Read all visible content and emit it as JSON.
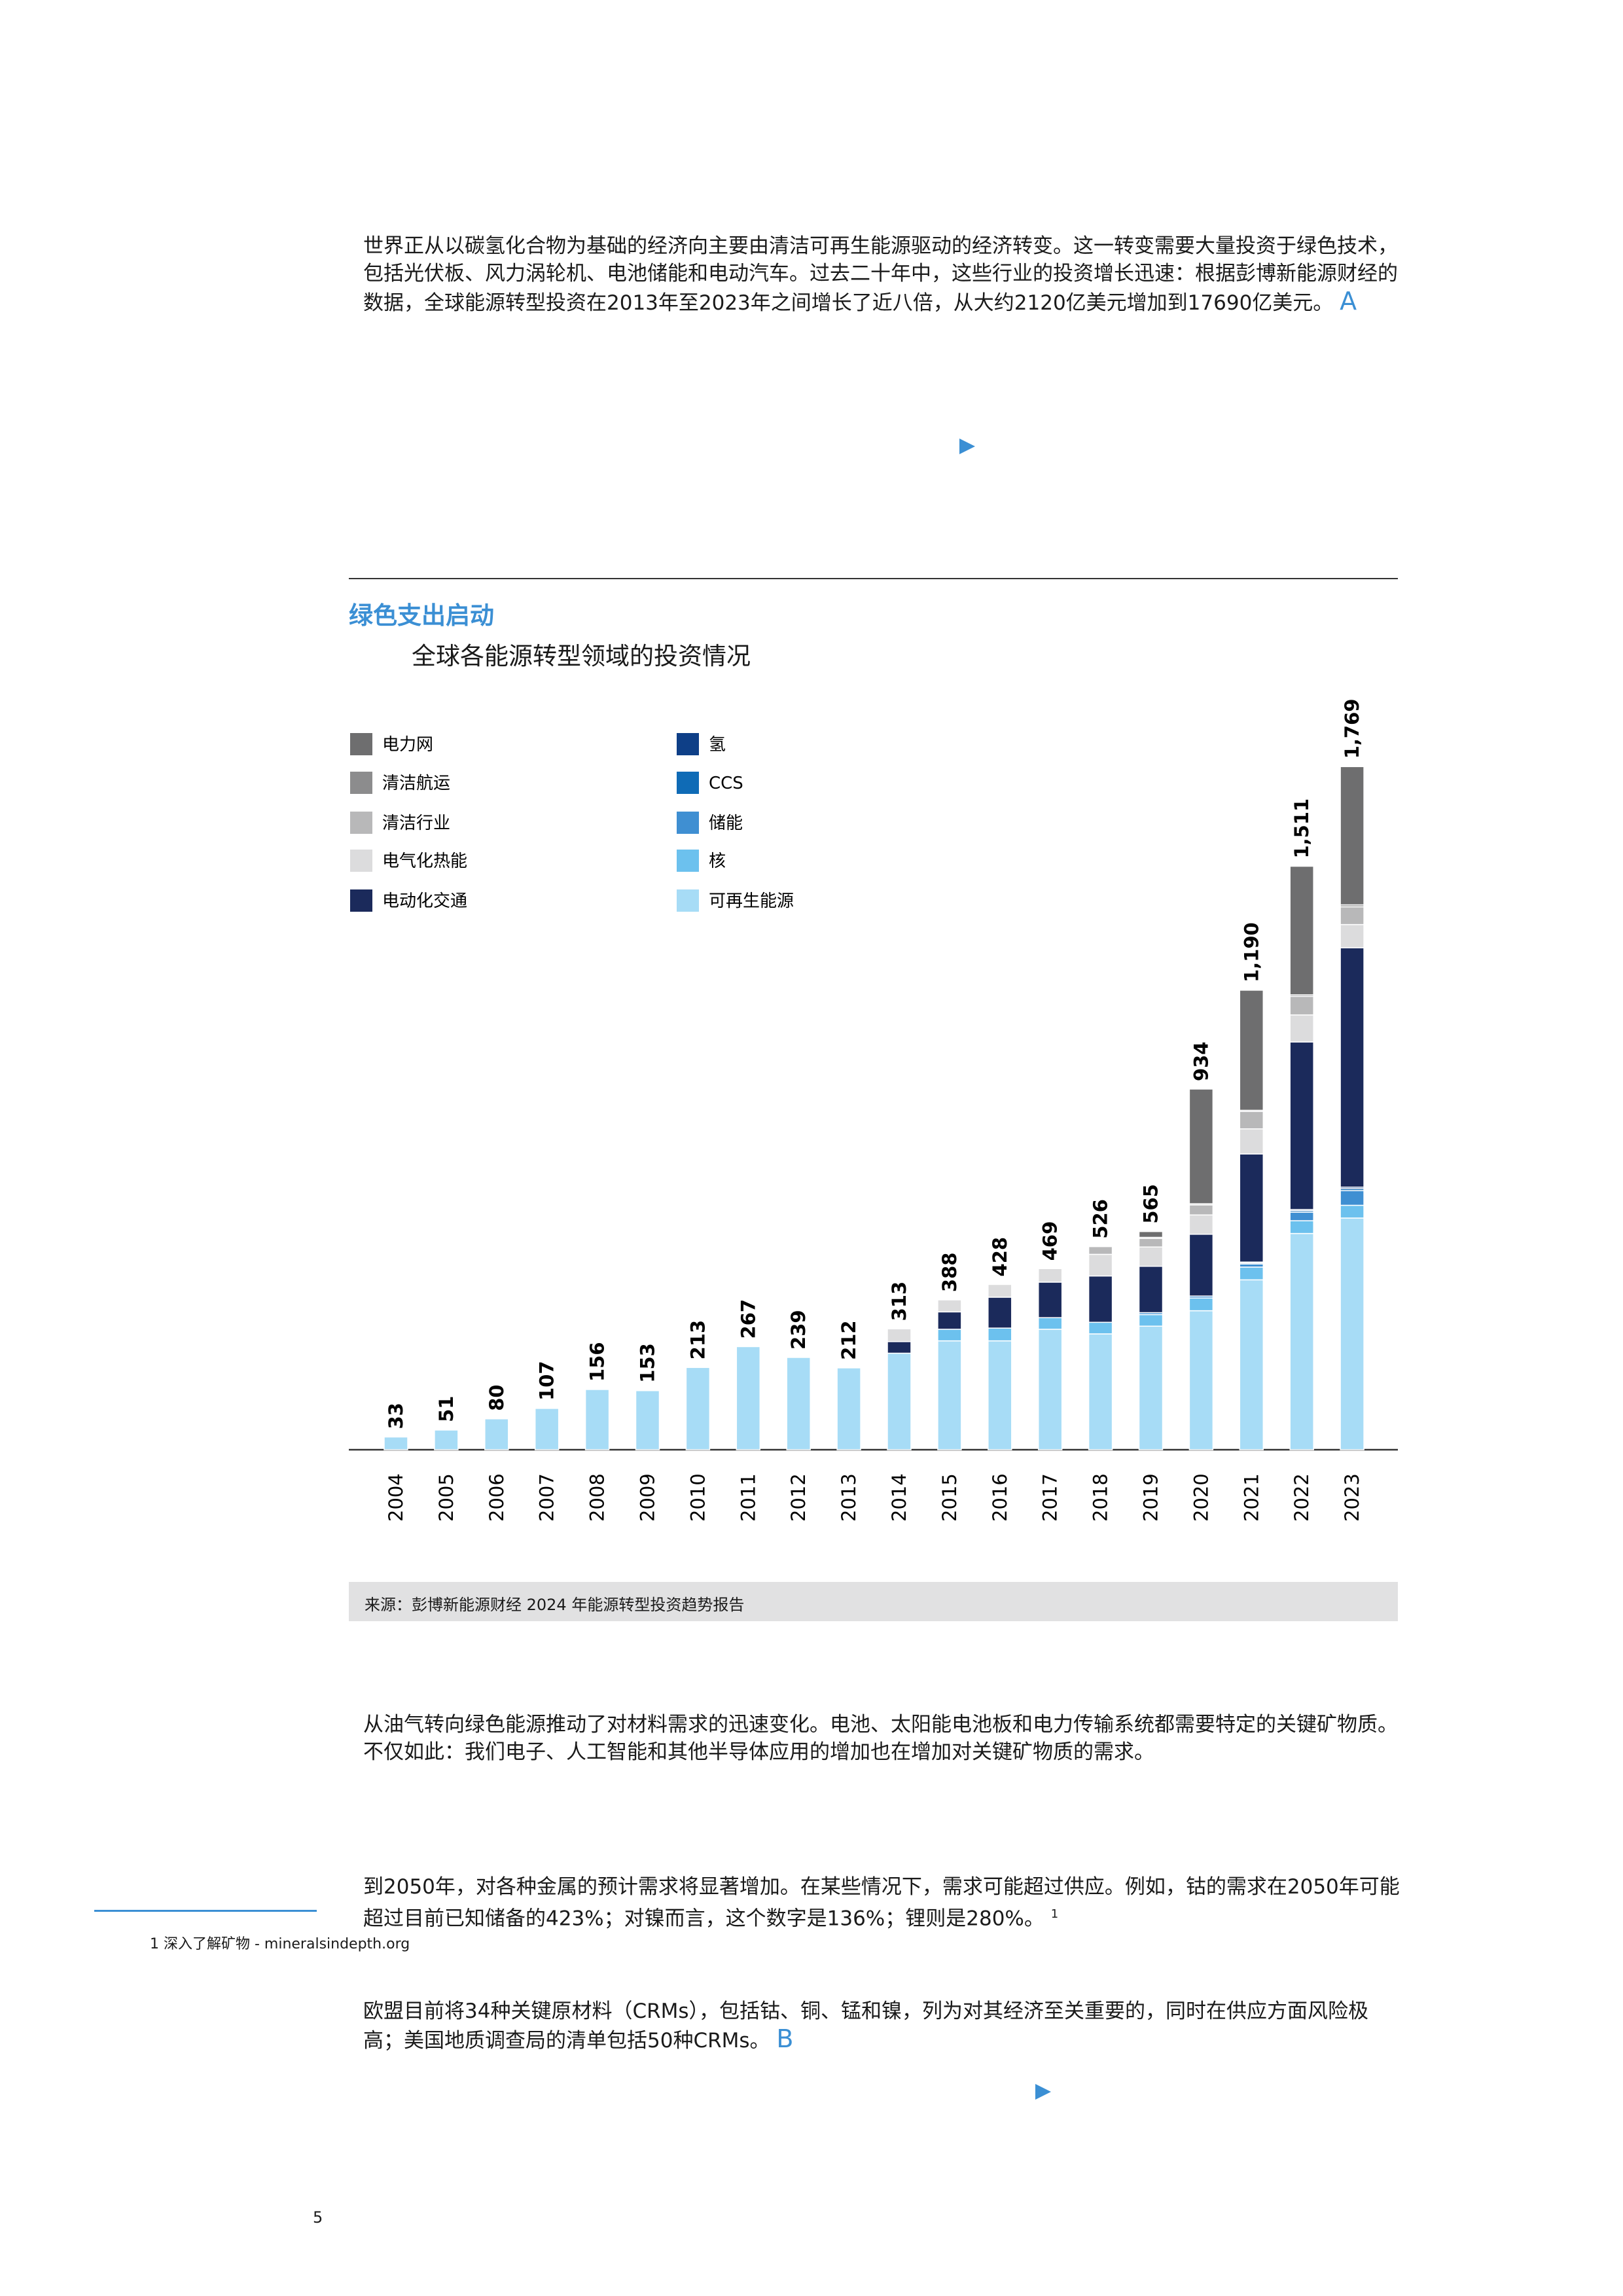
{
  "body": {
    "paragraph_1": "世界正从以碳氢化合物为基础的经济向主要由清洁可再生能源驱动的经济转变。这一转变需要大量投资于绿色技术，包括光伏板、风力涡轮机、电池储能和电动汽车。过去二十年中，这些行业的投资增长迅速：根据彭博新能源财经的数据，全球能源转型投资在2013年至2023年之间增长了近八倍，从大约2120亿美元增加到17690亿美元。",
    "marker_a": "A",
    "section_title": "绿色支出启动",
    "source": "来源：彭博新能源财经 2024 年能源转型投资趋势报告",
    "paragraph_2": "从油气转向绿色能源推动了对材料需求的迅速变化。电池、太阳能电池板和电力传输系统都需要特定的关键矿物质。不仅如此：我们电子、人工智能和其他半导体应用的增加也在增加对关键矿物质的需求。",
    "paragraph_3": "到2050年，对各种金属的预计需求将显著增加。在某些情况下，需求可能超过供应。例如，钴的需求在2050年可能超过目前已知储备的423%；对镍而言，这个数字是136%；锂则是280%。",
    "footnote_ref": "1",
    "footnote": "1 深入了解矿物 - mineralsindepth.org",
    "paragraph_4": "欧盟目前将34种关键原材料（CRMs），包括钴、铜、锰和镍，列为对其经济至关重要的，同时在供应方面风险极高；美国地质调查局的清单包括50种CRMs。",
    "marker_b": "B",
    "page_number": "5"
  },
  "chart_data": {
    "type": "stacked_bar",
    "title": "全球各能源转型领域的投资情况",
    "categories": [
      "2004",
      "2005",
      "2006",
      "2007",
      "2008",
      "2009",
      "2010",
      "2011",
      "2012",
      "2013",
      "2014",
      "2015",
      "2016",
      "2017",
      "2018",
      "2019",
      "2020",
      "2021",
      "2022",
      "2023"
    ],
    "total_labels": [
      "33",
      "51",
      "80",
      "107",
      "156",
      "153",
      "213",
      "267",
      "239",
      "212",
      "313",
      "388",
      "428",
      "469",
      "526",
      "565",
      "934",
      "1,190",
      "1,511",
      "1,769"
    ],
    "series": [
      {
        "name": "可再生能源",
        "color": "#a7dcf6",
        "values": [
          33,
          51,
          80,
          107,
          156,
          153,
          213,
          267,
          239,
          212,
          250,
          282,
          282,
          312,
          300,
          320,
          360,
          440,
          560,
          600
        ]
      },
      {
        "name": "核",
        "color": "#6cc1ee",
        "values": [
          0,
          0,
          0,
          0,
          0,
          0,
          0,
          0,
          0,
          0,
          0,
          30,
          33,
          30,
          30,
          30,
          33,
          33,
          33,
          33
        ]
      },
      {
        "name": "储能",
        "color": "#3f8fd2",
        "values": [
          0,
          0,
          0,
          0,
          0,
          0,
          0,
          0,
          0,
          0,
          0,
          0,
          0,
          0,
          0,
          5,
          5,
          8,
          22,
          38
        ]
      },
      {
        "name": "CCS",
        "color": "#0f6bb6",
        "values": [
          0,
          0,
          0,
          0,
          0,
          0,
          0,
          0,
          0,
          0,
          0,
          0,
          0,
          0,
          0,
          0,
          0,
          3,
          4,
          5
        ]
      },
      {
        "name": "氢",
        "color": "#0e3f87",
        "values": [
          0,
          0,
          0,
          0,
          0,
          0,
          0,
          0,
          0,
          0,
          0,
          0,
          0,
          0,
          0,
          0,
          0,
          2,
          3,
          4
        ]
      },
      {
        "name": "电动化交通",
        "color": "#1b2a5b",
        "values": [
          0,
          0,
          0,
          0,
          0,
          0,
          0,
          0,
          0,
          0,
          30,
          45,
          80,
          92,
          120,
          120,
          160,
          280,
          434,
          620
        ]
      },
      {
        "name": "电气化热能",
        "color": "#dcdcdd",
        "values": [
          0,
          0,
          0,
          0,
          0,
          0,
          0,
          0,
          0,
          0,
          33,
          31,
          33,
          35,
          56,
          50,
          50,
          65,
          70,
          60
        ]
      },
      {
        "name": "清洁行业",
        "color": "#b8b8b9",
        "values": [
          0,
          0,
          0,
          0,
          0,
          0,
          0,
          0,
          0,
          0,
          0,
          0,
          0,
          0,
          20,
          22,
          26,
          45,
          48,
          46
        ]
      },
      {
        "name": "清洁航运",
        "color": "#8c8c8d",
        "values": [
          0,
          0,
          0,
          0,
          0,
          0,
          0,
          0,
          0,
          0,
          0,
          0,
          0,
          0,
          0,
          3,
          3,
          3,
          4,
          5
        ]
      },
      {
        "name": "电力网",
        "color": "#6e6e6f",
        "values": [
          0,
          0,
          0,
          0,
          0,
          0,
          0,
          0,
          0,
          0,
          0,
          0,
          0,
          0,
          0,
          15,
          297,
          311,
          333,
          358
        ]
      }
    ]
  }
}
